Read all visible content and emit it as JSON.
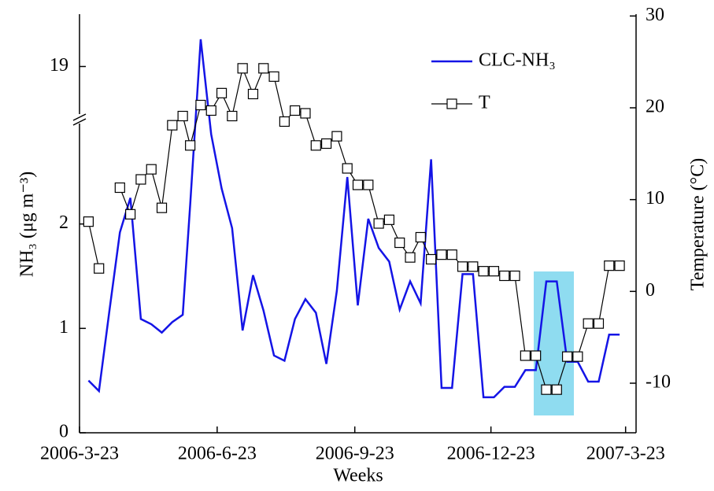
{
  "chart_data": {
    "type": "line",
    "x_label": "Weeks",
    "y_label": "NH₃ (μg m⁻³)",
    "y2_label": "Temperature (°C)",
    "x": [
      6,
      13,
      20,
      27,
      34,
      41,
      48,
      55,
      62,
      69,
      74,
      81,
      88,
      95,
      102,
      109,
      116,
      123,
      130,
      137,
      144,
      151,
      158,
      165,
      172,
      179,
      186,
      193,
      200,
      207,
      214,
      221,
      228,
      235,
      242,
      249,
      256,
      263,
      270,
      277,
      284,
      291,
      298,
      305,
      312,
      319,
      326,
      333,
      340,
      347,
      354,
      361
    ],
    "xlim": [
      0,
      372
    ],
    "xticks": [
      {
        "value": 0,
        "label": "2006-3-23"
      },
      {
        "value": 92,
        "label": "2006-6-23"
      },
      {
        "value": 184,
        "label": "2006-9-23"
      },
      {
        "value": 275,
        "label": "2006-12-23"
      },
      {
        "value": 365,
        "label": "2007-3-23"
      }
    ],
    "ylim": [
      0,
      19.5
    ],
    "y_break": [
      3,
      18.5
    ],
    "yticks": [
      0,
      1,
      2,
      19
    ],
    "y2lim": [
      -15.4,
      30.2
    ],
    "y2ticks": [
      -10,
      0,
      10,
      20,
      30
    ],
    "legend": "upper right",
    "series": [
      {
        "name": "CLC-NH₃",
        "color": "#1414e6",
        "axis": "y",
        "values": [
          0.5,
          0.4,
          1.17,
          1.92,
          2.25,
          1.09,
          1.04,
          0.96,
          1.06,
          1.13,
          2.19,
          19.26,
          2.86,
          2.34,
          1.96,
          0.98,
          1.51,
          1.17,
          0.74,
          0.69,
          1.09,
          1.28,
          1.15,
          0.66,
          1.36,
          2.45,
          1.22,
          2.05,
          1.77,
          1.64,
          1.18,
          1.45,
          1.24,
          2.62,
          0.43,
          0.43,
          1.52,
          1.52,
          0.34,
          0.34,
          0.44,
          0.44,
          0.6,
          0.6,
          1.45,
          1.45,
          0.68,
          0.68,
          0.49,
          0.49,
          0.94,
          0.94
        ]
      },
      {
        "name": "T",
        "color": "#000000",
        "axis": "y2",
        "marker": "square",
        "values": [
          7.6,
          2.5,
          null,
          11.3,
          8.4,
          12.2,
          13.3,
          9.1,
          18.1,
          19.1,
          15.9,
          20.3,
          19.7,
          21.6,
          19.1,
          24.3,
          21.5,
          24.3,
          23.4,
          18.5,
          19.7,
          19.4,
          15.9,
          16.1,
          16.9,
          13.4,
          11.6,
          11.6,
          7.4,
          7.8,
          5.3,
          3.7,
          5.9,
          3.5,
          4.0,
          4.0,
          2.7,
          2.7,
          2.2,
          2.2,
          1.7,
          1.7,
          -7.0,
          -7.0,
          -10.7,
          -10.7,
          -7.1,
          -7.1,
          -3.5,
          -3.5,
          2.8,
          2.8
        ]
      }
    ]
  }
}
